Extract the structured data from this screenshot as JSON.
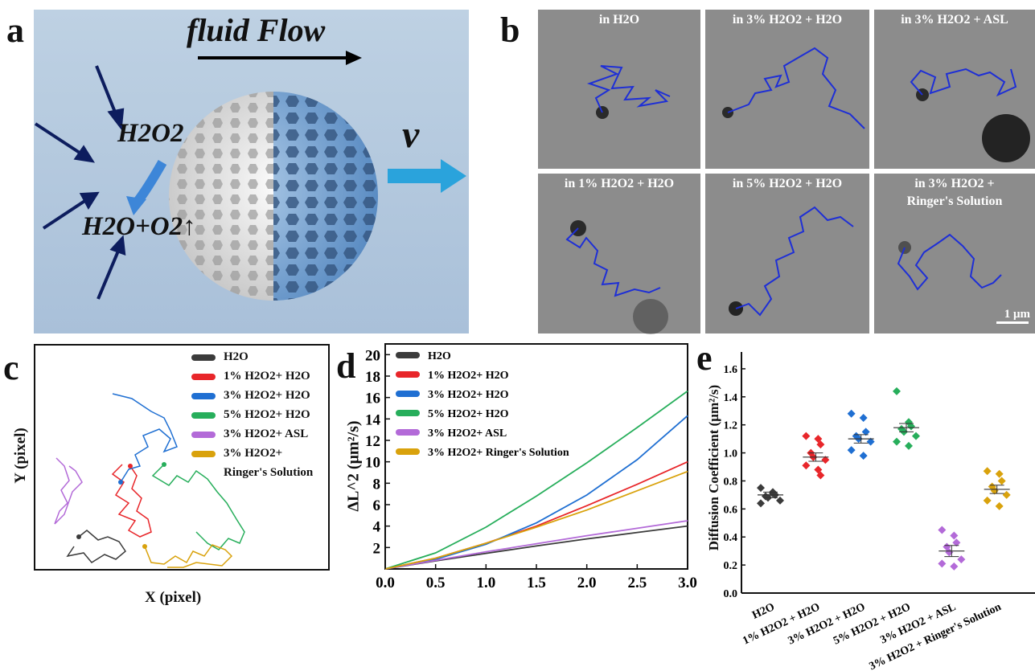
{
  "panel_letters": {
    "a": "a",
    "b": "b",
    "c": "c",
    "d": "d",
    "e": "e"
  },
  "panel_a": {
    "flow_label": "fluid Flow",
    "velocity_label": "v",
    "reactant": "H2O2",
    "products": "H2O+O2↑",
    "colors": {
      "background": "#c7d7e7",
      "sphere_light": "#d8d8d8",
      "sphere_blue": "#6f9fcc",
      "arrow": "#2aa3dc",
      "dark_arrow": "#0d1d5e"
    }
  },
  "panel_b": {
    "frames": [
      {
        "label": "in H2O"
      },
      {
        "label": "in 3% H2O2 + H2O"
      },
      {
        "label": "in 3% H2O2 + ASL"
      },
      {
        "label": "in 1% H2O2 + H2O"
      },
      {
        "label": "in 5% H2O2 + H2O"
      },
      {
        "label": "in 3% H2O2 +",
        "label2": "Ringer's Solution"
      }
    ],
    "scale_bar": "1 μm",
    "trajectory_color": "#1e2fd6"
  },
  "panel_c": {
    "xlabel": "X (pixel)",
    "ylabel": "Y (pixel)",
    "legend": [
      {
        "label": "H2O",
        "color": "#3b3b3b"
      },
      {
        "label": "1% H2O2+ H2O",
        "color": "#e8262a"
      },
      {
        "label": "3% H2O2+ H2O",
        "color": "#1f6fd2"
      },
      {
        "label": "5% H2O2+ H2O",
        "color": "#27ae5b"
      },
      {
        "label": "3% H2O2+ ASL",
        "color": "#b36ad8"
      },
      {
        "label": "3% H2O2+",
        "label2": "Ringer's Solution",
        "color": "#d9a20c"
      }
    ]
  },
  "chart_data": [
    {
      "type": "line",
      "ylabel": "ΔL^2 (μm²/s)",
      "x_ticks": [
        "0.0",
        "0.5",
        "1.0",
        "1.5",
        "2.0",
        "2.5",
        "3.0"
      ],
      "y_ticks": [
        "2",
        "4",
        "6",
        "8",
        "10",
        "12",
        "14",
        "16",
        "18",
        "20"
      ],
      "xlim": [
        0,
        3
      ],
      "ylim": [
        0,
        21
      ],
      "legend_position": "top-left",
      "x": [
        0,
        0.5,
        1.0,
        1.5,
        2.0,
        2.5,
        3.0
      ],
      "series": [
        {
          "name": "H2O",
          "color": "#3b3b3b",
          "values": [
            0,
            0.75,
            1.45,
            2.15,
            2.8,
            3.4,
            4.0
          ]
        },
        {
          "name": "1% H2O2+ H2O",
          "color": "#e8262a",
          "values": [
            0,
            1.0,
            2.4,
            4.0,
            5.9,
            7.9,
            10.0
          ]
        },
        {
          "name": "3% H2O2+ H2O",
          "color": "#1f6fd2",
          "values": [
            0,
            0.9,
            2.3,
            4.3,
            6.9,
            10.2,
            14.3
          ]
        },
        {
          "name": "5% H2O2+ H2O",
          "color": "#27ae5b",
          "values": [
            0,
            1.5,
            3.9,
            6.8,
            9.9,
            13.2,
            16.6
          ]
        },
        {
          "name": "3% H2O2+ ASL",
          "color": "#b36ad8",
          "values": [
            0,
            0.8,
            1.6,
            2.35,
            3.1,
            3.8,
            4.5
          ]
        },
        {
          "name": "3% H2O2+ Ringer's Solution",
          "color": "#d9a20c",
          "values": [
            0,
            1.0,
            2.4,
            3.9,
            5.5,
            7.3,
            9.1
          ]
        }
      ]
    },
    {
      "type": "scatter",
      "ylabel": "Diffusion Coefficient (μm²/s)",
      "categories": [
        "H2O",
        "1% H2O2 + H2O",
        "3% H2O2 + H2O",
        "5% H2O2 + H2O",
        "3% H2O2 + ASL",
        "3% H2O2 + Ringer's Solution"
      ],
      "y_ticks": [
        "0.0",
        "0.2",
        "0.4",
        "0.6",
        "0.8",
        "1.0",
        "1.2",
        "1.4",
        "1.6"
      ],
      "ylim": [
        0,
        1.72
      ],
      "series": [
        {
          "color": "#3b3b3b",
          "mean": 0.7,
          "sem": 0.02,
          "points": [
            0.75,
            0.72,
            0.7,
            0.69,
            0.68,
            0.66,
            0.64,
            0.71
          ]
        },
        {
          "color": "#e8262a",
          "mean": 0.97,
          "sem": 0.03,
          "points": [
            1.12,
            1.1,
            1.06,
            1.0,
            0.97,
            0.95,
            0.91,
            0.88,
            0.84
          ]
        },
        {
          "color": "#1f6fd2",
          "mean": 1.1,
          "sem": 0.03,
          "points": [
            1.28,
            1.25,
            1.15,
            1.12,
            1.1,
            1.08,
            1.02,
            0.98
          ]
        },
        {
          "color": "#27ae5b",
          "mean": 1.18,
          "sem": 0.03,
          "points": [
            1.44,
            1.22,
            1.19,
            1.17,
            1.15,
            1.12,
            1.08,
            1.05
          ]
        },
        {
          "color": "#b36ad8",
          "mean": 0.3,
          "sem": 0.04,
          "points": [
            0.45,
            0.41,
            0.36,
            0.33,
            0.29,
            0.24,
            0.21,
            0.19
          ]
        },
        {
          "color": "#d9a20c",
          "mean": 0.74,
          "sem": 0.03,
          "points": [
            0.87,
            0.85,
            0.8,
            0.76,
            0.73,
            0.7,
            0.66,
            0.62
          ]
        }
      ]
    }
  ]
}
